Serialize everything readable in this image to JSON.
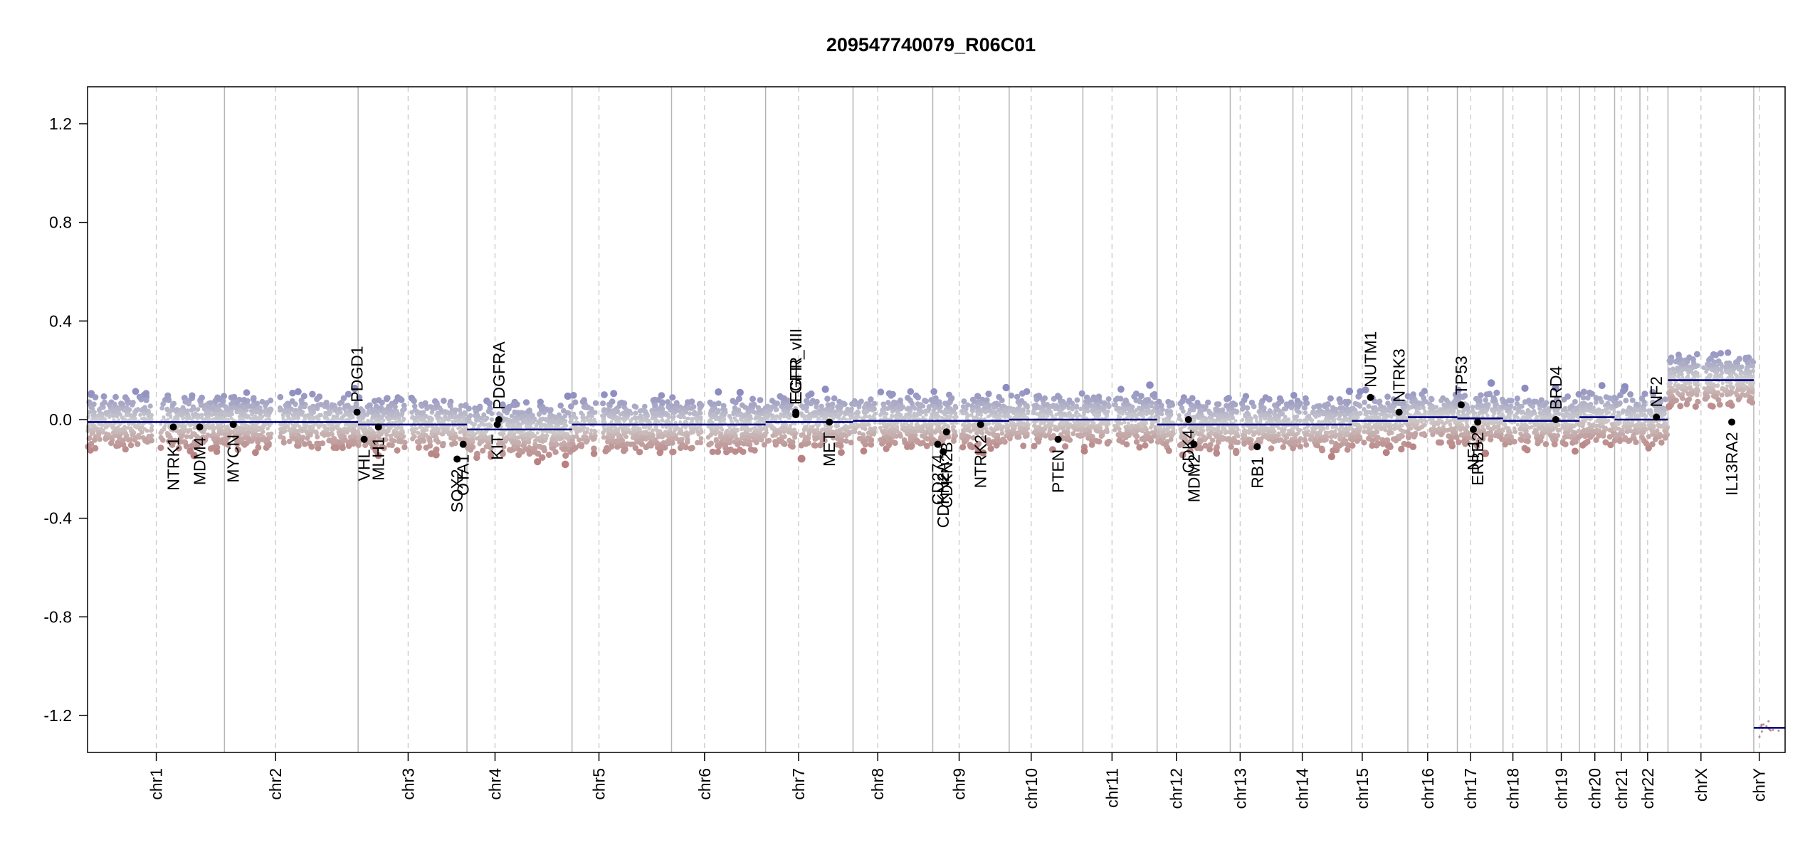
{
  "chart_data": {
    "type": "scatter",
    "title": "209547740079_R06C01",
    "xlabel": "",
    "ylabel": "",
    "ylim": [
      -1.35,
      1.35
    ],
    "yticks": [
      {
        "value": 1.2,
        "label": "1.2"
      },
      {
        "value": 0.8,
        "label": "0.8"
      },
      {
        "value": 0.4,
        "label": "0.4"
      },
      {
        "value": 0.0,
        "label": "0.0"
      },
      {
        "value": -0.4,
        "label": "-0.4"
      },
      {
        "value": -0.8,
        "label": "-0.8"
      },
      {
        "value": -1.2,
        "label": "-1.2"
      }
    ],
    "grid": false,
    "genome_total": 2881,
    "chromosomes": [
      {
        "name": "chr1",
        "start": 0,
        "end": 249,
        "centromere": 125
      },
      {
        "name": "chr2",
        "start": 249,
        "end": 492,
        "centromere": 342
      },
      {
        "name": "chr3",
        "start": 492,
        "end": 690,
        "centromere": 583
      },
      {
        "name": "chr4",
        "start": 690,
        "end": 881,
        "centromere": 741
      },
      {
        "name": "chr5",
        "start": 881,
        "end": 1062,
        "centromere": 930
      },
      {
        "name": "chr6",
        "start": 1062,
        "end": 1233,
        "centromere": 1122
      },
      {
        "name": "chr7",
        "start": 1233,
        "end": 1392,
        "centromere": 1293
      },
      {
        "name": "chr8",
        "start": 1392,
        "end": 1537,
        "centromere": 1437
      },
      {
        "name": "chr9",
        "start": 1537,
        "end": 1676,
        "centromere": 1585
      },
      {
        "name": "chr10",
        "start": 1676,
        "end": 1810,
        "centromere": 1716
      },
      {
        "name": "chr11",
        "start": 1810,
        "end": 1945,
        "centromere": 1863
      },
      {
        "name": "chr12",
        "start": 1945,
        "end": 2078,
        "centromere": 1980
      },
      {
        "name": "chr13",
        "start": 2078,
        "end": 2192,
        "centromere": 2096
      },
      {
        "name": "chr14",
        "start": 2192,
        "end": 2299,
        "centromere": 2209
      },
      {
        "name": "chr15",
        "start": 2299,
        "end": 2401,
        "centromere": 2318
      },
      {
        "name": "chr16",
        "start": 2401,
        "end": 2491,
        "centromere": 2437
      },
      {
        "name": "chr17",
        "start": 2491,
        "end": 2574,
        "centromere": 2515
      },
      {
        "name": "chr18",
        "start": 2574,
        "end": 2654,
        "centromere": 2592
      },
      {
        "name": "chr19",
        "start": 2654,
        "end": 2713,
        "centromere": 2680
      },
      {
        "name": "chr20",
        "start": 2713,
        "end": 2777,
        "centromere": 2741
      },
      {
        "name": "chr21",
        "start": 2777,
        "end": 2823,
        "centromere": 2789
      },
      {
        "name": "chr22",
        "start": 2823,
        "end": 2874,
        "centromere": 2837
      },
      {
        "name": "chrX",
        "start": 2874,
        "end": 3030,
        "centromere": 2934
      },
      {
        "name": "chrY",
        "start": 3030,
        "end": 3087,
        "centromere": 3040
      }
    ],
    "segments": [
      {
        "start": 0,
        "end": 492,
        "value": -0.01
      },
      {
        "start": 492,
        "end": 690,
        "value": -0.02
      },
      {
        "start": 690,
        "end": 881,
        "value": -0.04
      },
      {
        "start": 881,
        "end": 1233,
        "value": -0.02
      },
      {
        "start": 1233,
        "end": 1392,
        "value": -0.01
      },
      {
        "start": 1392,
        "end": 1676,
        "value": -0.005
      },
      {
        "start": 1676,
        "end": 1945,
        "value": 0.0
      },
      {
        "start": 1945,
        "end": 2299,
        "value": -0.02
      },
      {
        "start": 2299,
        "end": 2401,
        "value": -0.005
      },
      {
        "start": 2401,
        "end": 2491,
        "value": 0.01
      },
      {
        "start": 2491,
        "end": 2574,
        "value": 0.005
      },
      {
        "start": 2574,
        "end": 2713,
        "value": -0.005
      },
      {
        "start": 2713,
        "end": 2777,
        "value": 0.01
      },
      {
        "start": 2777,
        "end": 2874,
        "value": 0.0
      },
      {
        "start": 2874,
        "end": 3030,
        "value": 0.16
      },
      {
        "start": 3030,
        "end": 3087,
        "value": -1.25
      }
    ],
    "genes": [
      {
        "name": "NTRK1",
        "pos": 156,
        "value": -0.03,
        "side": "below"
      },
      {
        "name": "MDM4",
        "pos": 204,
        "value": -0.03,
        "side": "below"
      },
      {
        "name": "MYCN",
        "pos": 265,
        "value": -0.02,
        "side": "below"
      },
      {
        "name": "PDGD1",
        "pos": 490,
        "value": 0.03,
        "side": "above"
      },
      {
        "name": "VHL",
        "pos": 503,
        "value": -0.08,
        "side": "below"
      },
      {
        "name": "MLH1",
        "pos": 529,
        "value": -0.03,
        "side": "below"
      },
      {
        "name": "SOX2",
        "pos": 672,
        "value": -0.16,
        "side": "below"
      },
      {
        "name": "OTA1",
        "pos": 683,
        "value": -0.1,
        "side": "below"
      },
      {
        "name": "KIT",
        "pos": 745,
        "value": -0.02,
        "side": "below"
      },
      {
        "name": "PDGFRA",
        "pos": 748,
        "value": 0.0,
        "side": "above"
      },
      {
        "name": "EGFR_vIII",
        "pos": 1288,
        "value": 0.02,
        "side": "above"
      },
      {
        "name": "EGFR",
        "pos": 1288,
        "value": 0.03,
        "side": "above"
      },
      {
        "name": "MET",
        "pos": 1349,
        "value": -0.01,
        "side": "below"
      },
      {
        "name": "CD274",
        "pos": 1546,
        "value": -0.1,
        "side": "below"
      },
      {
        "name": "CDKN2A",
        "pos": 1556,
        "value": -0.13,
        "side": "below"
      },
      {
        "name": "CDKN2B",
        "pos": 1562,
        "value": -0.05,
        "side": "below"
      },
      {
        "name": "NTRK2",
        "pos": 1624,
        "value": -0.02,
        "side": "below"
      },
      {
        "name": "PTEN",
        "pos": 1765,
        "value": -0.08,
        "side": "below"
      },
      {
        "name": "CDK4",
        "pos": 2002,
        "value": 0.0,
        "side": "below"
      },
      {
        "name": "MDM2",
        "pos": 2012,
        "value": -0.1,
        "side": "below"
      },
      {
        "name": "RB1",
        "pos": 2127,
        "value": -0.11,
        "side": "below"
      },
      {
        "name": "NUTM1",
        "pos": 2333,
        "value": 0.09,
        "side": "above"
      },
      {
        "name": "NTRK3",
        "pos": 2385,
        "value": 0.03,
        "side": "above"
      },
      {
        "name": "TP53",
        "pos": 2498,
        "value": 0.06,
        "side": "above"
      },
      {
        "name": "NF1",
        "pos": 2520,
        "value": -0.04,
        "side": "below"
      },
      {
        "name": "ERBB2",
        "pos": 2528,
        "value": -0.01,
        "side": "below"
      },
      {
        "name": "BRD4",
        "pos": 2670,
        "value": 0.0,
        "side": "above"
      },
      {
        "name": "NF2",
        "pos": 2853,
        "value": 0.01,
        "side": "above"
      },
      {
        "name": "IL13RA2",
        "pos": 2990,
        "value": -0.01,
        "side": "below"
      }
    ],
    "colors": {
      "gain": "#8c8cc0",
      "loss": "#b88080",
      "neutral": "#cfcfcf",
      "segment": "#00007f",
      "gene_dot": "#000000",
      "chr_boundary": "#b5b5b5",
      "centromere": "#c8c8c8"
    }
  }
}
